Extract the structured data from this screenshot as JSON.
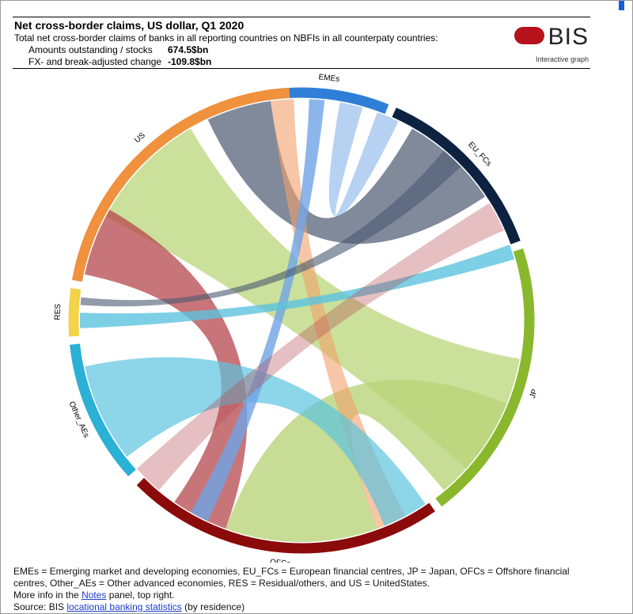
{
  "header": {
    "title": "Net cross-border claims, US dollar, Q1 2020",
    "subtitle": "Total net cross-border claims of banks in all reporting countries on NBFIs in all counterpaty countries:",
    "rows": [
      {
        "label": "Amounts outstanding / stocks",
        "value": "674.5$bn"
      },
      {
        "label": "FX- and break-adjusted change",
        "value": "-109.8$bn"
      }
    ],
    "logo": "BIS",
    "link": "Interactive graph"
  },
  "nodes": [
    {
      "label": "EMEs",
      "color": "#2f7ed8"
    },
    {
      "label": "EU_FCs",
      "color": "#0d2240"
    },
    {
      "label": "JP",
      "color": "#8ab82c"
    },
    {
      "label": "OFCs",
      "color": "#8b0a0a"
    },
    {
      "label": "Other_AEs",
      "color": "#2bb0d6"
    },
    {
      "label": "RES",
      "color": "#f3d34a"
    },
    {
      "label": "US",
      "color": "#f0913e"
    }
  ],
  "footer": {
    "legend": "EMEs = Emerging market and developing economies, EU_FCs = European financial centres, JP = Japan, OFCs = Offshore financial centres, Other_AEs = Other advanced economies, RES = Residual/others, and US = UnitedStates.",
    "info_pre": "More info in the",
    "info_link": "Notes",
    "info_post": "panel, top right.",
    "source_pre": "Source: BIS",
    "source_link": "locational banking statistics",
    "source_post": "(by residence)"
  }
}
